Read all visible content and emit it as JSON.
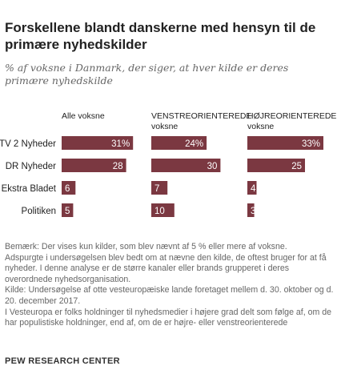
{
  "title": "Forskellene blandt danskerne med hensyn til de primære nyhedskilder",
  "subtitle": "% af voksne i Danmark, der siger, at hver kilde er deres primære nyhedskilde",
  "chart_data": {
    "type": "bar",
    "orientation": "horizontal",
    "categories": [
      "TV 2 Nyheder",
      "DR Nyheder",
      "Ekstra Bladet",
      "Politiken"
    ],
    "series": [
      {
        "name": "Alle voksne",
        "values": [
          31,
          28,
          6,
          5
        ],
        "labels": [
          "31%",
          "28",
          "6",
          "5"
        ]
      },
      {
        "name": "VENSTREORIENTEREDE voksne",
        "values": [
          24,
          30,
          7,
          10
        ],
        "labels": [
          "24%",
          "30",
          "7",
          "10"
        ]
      },
      {
        "name": "HØJREORIENTEREDE voksne",
        "values": [
          33,
          25,
          4,
          3
        ],
        "labels": [
          "33%",
          "25",
          "4",
          "3"
        ]
      }
    ],
    "colors": {
      "bar": "#7b3841",
      "bar_label": "#ffffff"
    },
    "xlim": [
      0,
      33
    ],
    "grid": false,
    "legend": "none"
  },
  "column_headers": [
    {
      "line1": "Alle voksne",
      "line2": ""
    },
    {
      "line1": "VENSTREORIENTEREDE",
      "line2": "voksne"
    },
    {
      "line1": "HØJREORIENTEREDE",
      "line2": "voksne"
    }
  ],
  "notes": [
    "Bemærk: Der vises kun kilder, som blev nævnt af 5 % eller mere af voksne.",
    "Adspurgte i undersøgelsen blev bedt om at nævne den kilde, de oftest bruger for at få nyheder. I denne analyse er de større kanaler eller brands grupperet i deres overordnede nyhedsorganisation.",
    "Kilde: Undersøgelse af otte vesteuropæiske lande foretaget mellem d. 30. oktober og d. 20. december 2017.",
    "I Vesteuropa er folks holdninger til nyhedsmedier i højere grad delt som følge af, om de har populistiske holdninger, end af, om de er højre- eller venstreorienterede"
  ],
  "source_label": "PEW RESEARCH CENTER"
}
